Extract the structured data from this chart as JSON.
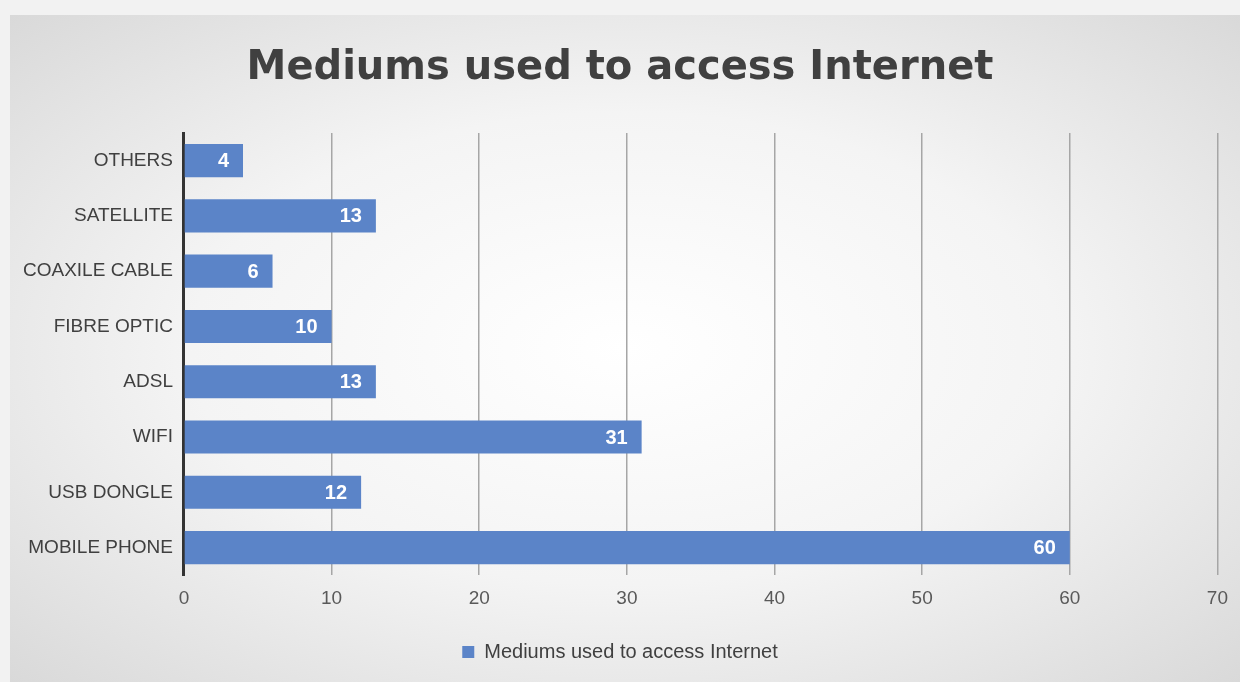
{
  "chart_data": {
    "type": "bar",
    "orientation": "horizontal",
    "title": "Mediums used to access Internet",
    "categories": [
      "OTHERS",
      "SATELLITE",
      "COAXILE CABLE",
      "FIBRE OPTIC",
      "ADSL",
      "WIFI",
      "USB DONGLE",
      "MOBILE PHONE"
    ],
    "series": [
      {
        "name": "Mediums used to access Internet",
        "color": "#5b84c8",
        "values": [
          4,
          13,
          6,
          10,
          13,
          31,
          12,
          60
        ]
      }
    ],
    "xlim": [
      0,
      70
    ],
    "xticks": [
      0,
      10,
      20,
      30,
      40,
      50,
      60,
      70
    ],
    "grid": "x",
    "legend": "bottom",
    "data_labels": true
  }
}
